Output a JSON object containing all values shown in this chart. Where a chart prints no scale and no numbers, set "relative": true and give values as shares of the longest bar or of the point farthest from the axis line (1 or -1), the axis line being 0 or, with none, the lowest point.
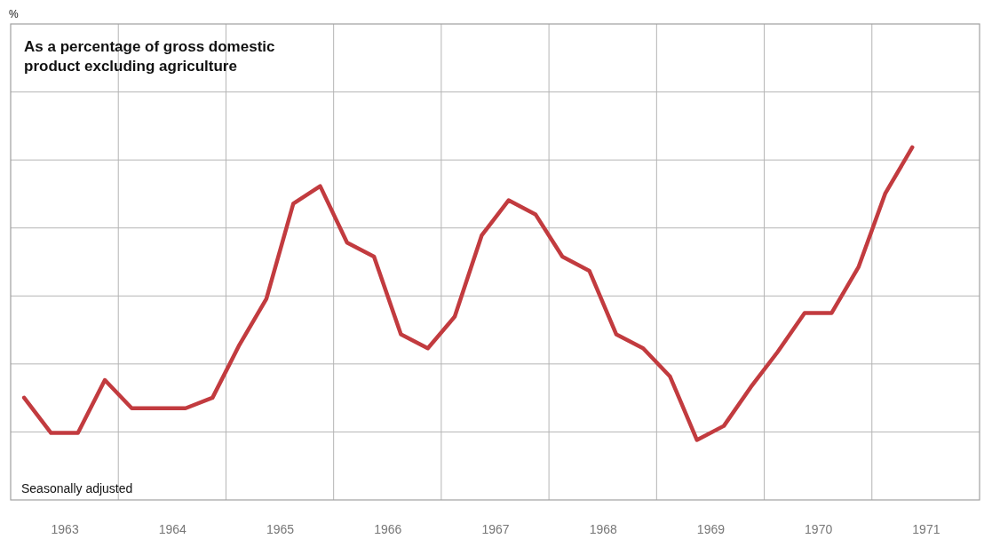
{
  "chart_data": {
    "type": "line",
    "title": "As a percentage of gross domestic product excluding agriculture",
    "annotations": [
      "%",
      "Seasonally adjusted"
    ],
    "relative": true,
    "x": [
      1963.125,
      1963.375,
      1963.625,
      1963.875,
      1964.125,
      1964.375,
      1964.625,
      1964.875,
      1965.125,
      1965.375,
      1965.625,
      1965.875,
      1966.125,
      1966.375,
      1966.625,
      1966.875,
      1967.125,
      1967.375,
      1967.625,
      1967.875,
      1968.125,
      1968.375,
      1968.625,
      1968.875,
      1969.125,
      1969.375,
      1969.625,
      1969.875,
      1970.125,
      1970.375,
      1970.625,
      1970.875,
      1971.125,
      1971.375
    ],
    "xlim": [
      1963,
      1972
    ],
    "xticks": [
      {
        "value": 1963.5,
        "label": "1963"
      },
      {
        "value": 1964,
        "label": null
      },
      {
        "value": 1964.5,
        "label": "1964"
      },
      {
        "value": 1965,
        "label": null
      },
      {
        "value": 1965.5,
        "label": "1965"
      },
      {
        "value": 1966,
        "label": null
      },
      {
        "value": 1966.5,
        "label": "1966"
      },
      {
        "value": 1967,
        "label": null
      },
      {
        "value": 1967.5,
        "label": "1967"
      },
      {
        "value": 1968,
        "label": null
      },
      {
        "value": 1968.5,
        "label": "1968"
      },
      {
        "value": 1969,
        "label": null
      },
      {
        "value": 1969.5,
        "label": "1969"
      },
      {
        "value": 1970,
        "label": null
      },
      {
        "value": 1970.5,
        "label": "1970"
      },
      {
        "value": 1971,
        "label": null
      },
      {
        "value": 1971.5,
        "label": "1971"
      }
    ],
    "series": [
      {
        "color": "#c23b3f",
        "values": [
          0.29,
          0.19,
          0.19,
          0.34,
          0.26,
          0.26,
          0.26,
          0.29,
          0.44,
          0.57,
          0.84,
          0.89,
          0.73,
          0.69,
          0.47,
          0.43,
          0.52,
          0.75,
          0.85,
          0.81,
          0.69,
          0.65,
          0.47,
          0.43,
          0.35,
          0.17,
          0.21,
          0.32,
          0.42,
          0.53,
          0.53,
          0.66,
          0.87,
          1.0
        ]
      }
    ],
    "grid": true,
    "marker": "none",
    "line_style": "solid"
  }
}
